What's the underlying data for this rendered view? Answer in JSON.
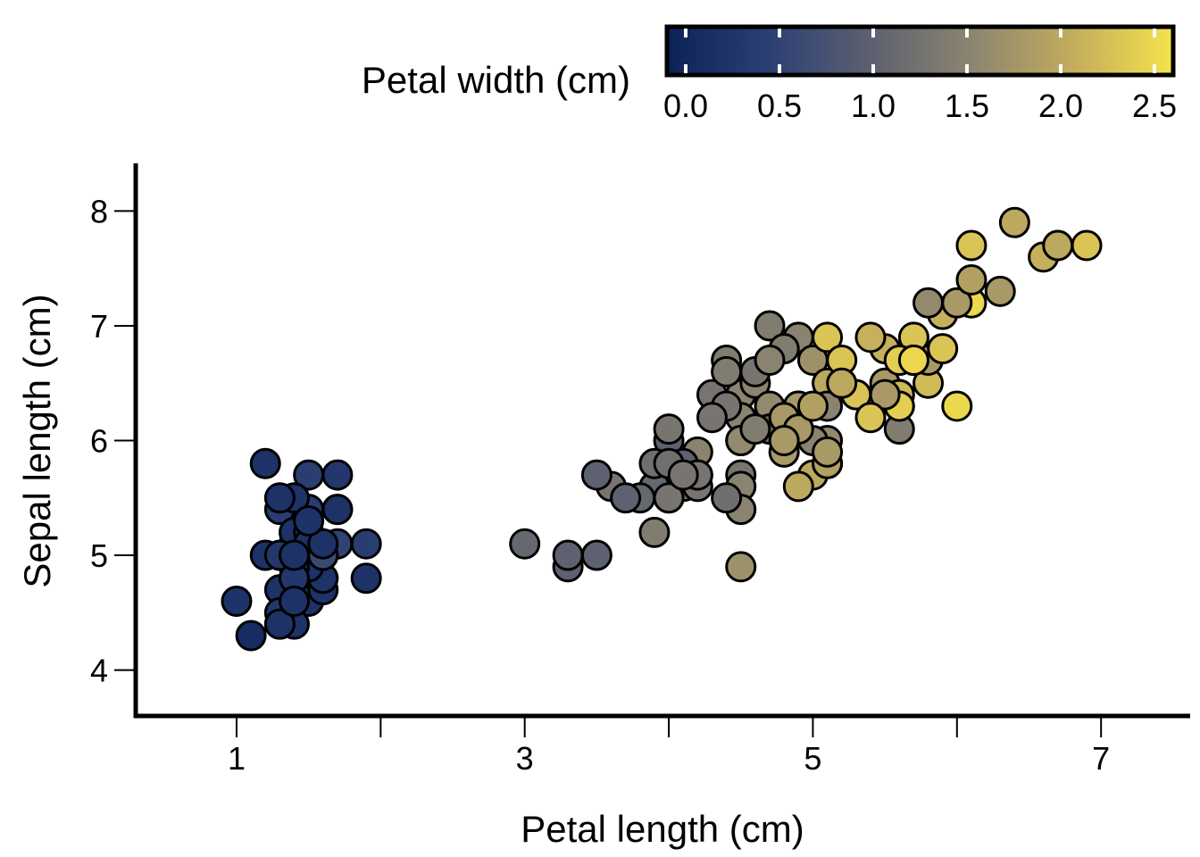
{
  "chart_data": {
    "type": "scatter",
    "xlabel": "Petal length (cm)",
    "ylabel": "Sepal length (cm)",
    "xlim": [
      0.3,
      7.6
    ],
    "ylim": [
      3.6,
      8.4
    ],
    "xticks": [
      {
        "value": 1,
        "label": "1"
      },
      {
        "value": 2,
        "label": ""
      },
      {
        "value": 3,
        "label": "3"
      },
      {
        "value": 4,
        "label": ""
      },
      {
        "value": 5,
        "label": "5"
      },
      {
        "value": 6,
        "label": ""
      },
      {
        "value": 7,
        "label": "7"
      }
    ],
    "yticks": [
      {
        "value": 4,
        "label": "4"
      },
      {
        "value": 5,
        "label": "5"
      },
      {
        "value": 6,
        "label": "6"
      },
      {
        "value": 7,
        "label": "7"
      },
      {
        "value": 8,
        "label": "8"
      }
    ],
    "grid": false,
    "legend": {
      "title": "Petal width (cm)",
      "placement": "top",
      "type": "colorbar",
      "range": [
        -0.1,
        2.6
      ],
      "ticks": [
        "0.0",
        "0.5",
        "1.0",
        "1.5",
        "2.0",
        "2.5"
      ],
      "tick_values": [
        0.0,
        0.5,
        1.0,
        1.5,
        2.0,
        2.5
      ]
    },
    "colormap": [
      "#0c2257",
      "#2b3f73",
      "#5c6070",
      "#8b8470",
      "#c2ac5d",
      "#f6e24c"
    ],
    "marker_edge_color": "#000000",
    "color_variable": "petal_width",
    "points": [
      {
        "x": 1.4,
        "y": 5.1,
        "c": 0.2
      },
      {
        "x": 1.4,
        "y": 4.9,
        "c": 0.2
      },
      {
        "x": 1.3,
        "y": 4.7,
        "c": 0.2
      },
      {
        "x": 1.5,
        "y": 4.6,
        "c": 0.2
      },
      {
        "x": 1.4,
        "y": 5.0,
        "c": 0.2
      },
      {
        "x": 1.7,
        "y": 5.4,
        "c": 0.4
      },
      {
        "x": 1.4,
        "y": 4.6,
        "c": 0.3
      },
      {
        "x": 1.5,
        "y": 5.0,
        "c": 0.2
      },
      {
        "x": 1.4,
        "y": 4.4,
        "c": 0.2
      },
      {
        "x": 1.5,
        "y": 4.9,
        "c": 0.1
      },
      {
        "x": 1.5,
        "y": 5.4,
        "c": 0.2
      },
      {
        "x": 1.6,
        "y": 4.8,
        "c": 0.2
      },
      {
        "x": 1.4,
        "y": 4.8,
        "c": 0.1
      },
      {
        "x": 1.1,
        "y": 4.3,
        "c": 0.1
      },
      {
        "x": 1.2,
        "y": 5.8,
        "c": 0.2
      },
      {
        "x": 1.5,
        "y": 5.7,
        "c": 0.4
      },
      {
        "x": 1.3,
        "y": 5.4,
        "c": 0.4
      },
      {
        "x": 1.4,
        "y": 5.1,
        "c": 0.3
      },
      {
        "x": 1.7,
        "y": 5.7,
        "c": 0.3
      },
      {
        "x": 1.5,
        "y": 5.1,
        "c": 0.3
      },
      {
        "x": 1.7,
        "y": 5.4,
        "c": 0.2
      },
      {
        "x": 1.5,
        "y": 5.1,
        "c": 0.4
      },
      {
        "x": 1.0,
        "y": 4.6,
        "c": 0.2
      },
      {
        "x": 1.7,
        "y": 5.1,
        "c": 0.5
      },
      {
        "x": 1.9,
        "y": 4.8,
        "c": 0.2
      },
      {
        "x": 1.6,
        "y": 5.0,
        "c": 0.2
      },
      {
        "x": 1.6,
        "y": 5.0,
        "c": 0.4
      },
      {
        "x": 1.5,
        "y": 5.2,
        "c": 0.2
      },
      {
        "x": 1.4,
        "y": 5.2,
        "c": 0.2
      },
      {
        "x": 1.6,
        "y": 4.7,
        "c": 0.2
      },
      {
        "x": 1.6,
        "y": 4.8,
        "c": 0.2
      },
      {
        "x": 1.5,
        "y": 5.4,
        "c": 0.4
      },
      {
        "x": 1.5,
        "y": 5.2,
        "c": 0.1
      },
      {
        "x": 1.4,
        "y": 5.5,
        "c": 0.2
      },
      {
        "x": 1.5,
        "y": 4.9,
        "c": 0.2
      },
      {
        "x": 1.2,
        "y": 5.0,
        "c": 0.2
      },
      {
        "x": 1.3,
        "y": 5.5,
        "c": 0.2
      },
      {
        "x": 1.4,
        "y": 4.9,
        "c": 0.1
      },
      {
        "x": 1.3,
        "y": 4.4,
        "c": 0.2
      },
      {
        "x": 1.5,
        "y": 5.1,
        "c": 0.2
      },
      {
        "x": 1.3,
        "y": 5.0,
        "c": 0.3
      },
      {
        "x": 1.3,
        "y": 4.5,
        "c": 0.3
      },
      {
        "x": 1.3,
        "y": 4.4,
        "c": 0.2
      },
      {
        "x": 1.6,
        "y": 5.0,
        "c": 0.6
      },
      {
        "x": 1.9,
        "y": 5.1,
        "c": 0.4
      },
      {
        "x": 1.4,
        "y": 4.8,
        "c": 0.3
      },
      {
        "x": 1.6,
        "y": 5.1,
        "c": 0.2
      },
      {
        "x": 1.4,
        "y": 4.6,
        "c": 0.2
      },
      {
        "x": 1.5,
        "y": 5.3,
        "c": 0.2
      },
      {
        "x": 1.4,
        "y": 5.0,
        "c": 0.2
      },
      {
        "x": 4.7,
        "y": 7.0,
        "c": 1.4
      },
      {
        "x": 4.5,
        "y": 6.4,
        "c": 1.5
      },
      {
        "x": 4.9,
        "y": 6.9,
        "c": 1.5
      },
      {
        "x": 4.0,
        "y": 5.5,
        "c": 1.3
      },
      {
        "x": 4.6,
        "y": 6.5,
        "c": 1.5
      },
      {
        "x": 4.5,
        "y": 5.7,
        "c": 1.3
      },
      {
        "x": 4.7,
        "y": 6.3,
        "c": 1.6
      },
      {
        "x": 3.3,
        "y": 4.9,
        "c": 1.0
      },
      {
        "x": 4.6,
        "y": 6.6,
        "c": 1.3
      },
      {
        "x": 3.9,
        "y": 5.2,
        "c": 1.4
      },
      {
        "x": 3.5,
        "y": 5.0,
        "c": 1.0
      },
      {
        "x": 4.2,
        "y": 5.9,
        "c": 1.5
      },
      {
        "x": 4.0,
        "y": 6.0,
        "c": 1.0
      },
      {
        "x": 4.7,
        "y": 6.1,
        "c": 1.4
      },
      {
        "x": 3.6,
        "y": 5.6,
        "c": 1.3
      },
      {
        "x": 4.4,
        "y": 6.7,
        "c": 1.4
      },
      {
        "x": 4.5,
        "y": 5.6,
        "c": 1.5
      },
      {
        "x": 4.1,
        "y": 5.8,
        "c": 1.0
      },
      {
        "x": 4.5,
        "y": 6.2,
        "c": 1.5
      },
      {
        "x": 3.9,
        "y": 5.6,
        "c": 1.1
      },
      {
        "x": 4.8,
        "y": 5.9,
        "c": 1.8
      },
      {
        "x": 4.0,
        "y": 6.1,
        "c": 1.3
      },
      {
        "x": 4.9,
        "y": 6.3,
        "c": 1.5
      },
      {
        "x": 4.7,
        "y": 6.1,
        "c": 1.2
      },
      {
        "x": 4.3,
        "y": 6.4,
        "c": 1.3
      },
      {
        "x": 4.4,
        "y": 6.6,
        "c": 1.4
      },
      {
        "x": 4.8,
        "y": 6.8,
        "c": 1.4
      },
      {
        "x": 5.0,
        "y": 6.7,
        "c": 1.7
      },
      {
        "x": 4.5,
        "y": 6.0,
        "c": 1.5
      },
      {
        "x": 3.5,
        "y": 5.7,
        "c": 1.0
      },
      {
        "x": 3.8,
        "y": 5.5,
        "c": 1.1
      },
      {
        "x": 3.7,
        "y": 5.5,
        "c": 1.0
      },
      {
        "x": 3.9,
        "y": 5.8,
        "c": 1.2
      },
      {
        "x": 5.1,
        "y": 6.0,
        "c": 1.6
      },
      {
        "x": 4.5,
        "y": 5.4,
        "c": 1.5
      },
      {
        "x": 4.5,
        "y": 6.0,
        "c": 1.6
      },
      {
        "x": 4.7,
        "y": 6.7,
        "c": 1.5
      },
      {
        "x": 4.4,
        "y": 6.3,
        "c": 1.3
      },
      {
        "x": 4.1,
        "y": 5.6,
        "c": 1.3
      },
      {
        "x": 4.0,
        "y": 5.5,
        "c": 1.3
      },
      {
        "x": 4.4,
        "y": 5.5,
        "c": 1.2
      },
      {
        "x": 4.6,
        "y": 6.1,
        "c": 1.4
      },
      {
        "x": 4.0,
        "y": 5.8,
        "c": 1.2
      },
      {
        "x": 3.3,
        "y": 5.0,
        "c": 1.0
      },
      {
        "x": 4.2,
        "y": 5.6,
        "c": 1.3
      },
      {
        "x": 4.2,
        "y": 5.7,
        "c": 1.2
      },
      {
        "x": 4.2,
        "y": 5.7,
        "c": 1.3
      },
      {
        "x": 4.3,
        "y": 6.2,
        "c": 1.3
      },
      {
        "x": 3.0,
        "y": 5.1,
        "c": 1.1
      },
      {
        "x": 4.1,
        "y": 5.7,
        "c": 1.3
      },
      {
        "x": 6.0,
        "y": 6.3,
        "c": 2.5
      },
      {
        "x": 5.1,
        "y": 5.8,
        "c": 1.9
      },
      {
        "x": 5.9,
        "y": 7.1,
        "c": 2.1
      },
      {
        "x": 5.6,
        "y": 6.3,
        "c": 1.8
      },
      {
        "x": 5.8,
        "y": 6.5,
        "c": 2.2
      },
      {
        "x": 6.6,
        "y": 7.6,
        "c": 2.1
      },
      {
        "x": 4.5,
        "y": 4.9,
        "c": 1.7
      },
      {
        "x": 6.3,
        "y": 7.3,
        "c": 1.8
      },
      {
        "x": 5.8,
        "y": 6.7,
        "c": 1.8
      },
      {
        "x": 6.1,
        "y": 7.2,
        "c": 2.5
      },
      {
        "x": 5.1,
        "y": 6.5,
        "c": 2.0
      },
      {
        "x": 5.3,
        "y": 6.4,
        "c": 1.9
      },
      {
        "x": 5.5,
        "y": 6.8,
        "c": 2.1
      },
      {
        "x": 5.0,
        "y": 5.7,
        "c": 2.0
      },
      {
        "x": 5.1,
        "y": 5.8,
        "c": 2.4
      },
      {
        "x": 5.3,
        "y": 6.4,
        "c": 2.3
      },
      {
        "x": 5.5,
        "y": 6.5,
        "c": 1.8
      },
      {
        "x": 6.7,
        "y": 7.7,
        "c": 2.2
      },
      {
        "x": 6.9,
        "y": 7.7,
        "c": 2.3
      },
      {
        "x": 5.0,
        "y": 6.0,
        "c": 1.5
      },
      {
        "x": 5.7,
        "y": 6.9,
        "c": 2.3
      },
      {
        "x": 4.9,
        "y": 5.6,
        "c": 2.0
      },
      {
        "x": 6.7,
        "y": 7.7,
        "c": 2.0
      },
      {
        "x": 4.9,
        "y": 6.3,
        "c": 1.8
      },
      {
        "x": 5.7,
        "y": 6.7,
        "c": 2.1
      },
      {
        "x": 6.0,
        "y": 7.2,
        "c": 1.8
      },
      {
        "x": 4.8,
        "y": 6.2,
        "c": 1.8
      },
      {
        "x": 4.9,
        "y": 6.1,
        "c": 1.8
      },
      {
        "x": 5.6,
        "y": 6.4,
        "c": 2.1
      },
      {
        "x": 5.8,
        "y": 7.2,
        "c": 1.6
      },
      {
        "x": 6.1,
        "y": 7.4,
        "c": 1.9
      },
      {
        "x": 6.4,
        "y": 7.9,
        "c": 2.0
      },
      {
        "x": 5.6,
        "y": 6.4,
        "c": 2.2
      },
      {
        "x": 5.1,
        "y": 6.3,
        "c": 1.5
      },
      {
        "x": 5.6,
        "y": 6.1,
        "c": 1.4
      },
      {
        "x": 6.1,
        "y": 7.7,
        "c": 2.3
      },
      {
        "x": 5.6,
        "y": 6.3,
        "c": 2.4
      },
      {
        "x": 5.5,
        "y": 6.4,
        "c": 1.8
      },
      {
        "x": 4.8,
        "y": 6.0,
        "c": 1.8
      },
      {
        "x": 5.4,
        "y": 6.9,
        "c": 2.1
      },
      {
        "x": 5.6,
        "y": 6.7,
        "c": 2.4
      },
      {
        "x": 5.1,
        "y": 6.9,
        "c": 2.3
      },
      {
        "x": 5.1,
        "y": 5.8,
        "c": 1.9
      },
      {
        "x": 5.9,
        "y": 6.8,
        "c": 2.3
      },
      {
        "x": 5.7,
        "y": 6.7,
        "c": 2.5
      },
      {
        "x": 5.2,
        "y": 6.7,
        "c": 2.3
      },
      {
        "x": 5.0,
        "y": 6.3,
        "c": 1.9
      },
      {
        "x": 5.2,
        "y": 6.5,
        "c": 2.0
      },
      {
        "x": 5.4,
        "y": 6.2,
        "c": 2.3
      },
      {
        "x": 5.1,
        "y": 5.9,
        "c": 1.8
      }
    ]
  }
}
